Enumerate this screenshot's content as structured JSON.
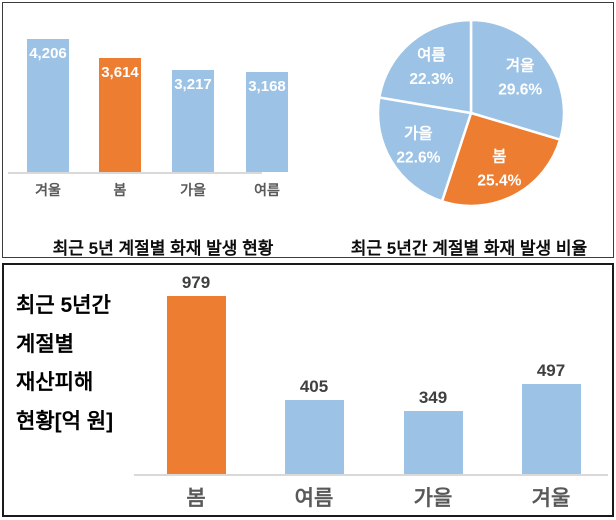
{
  "colors": {
    "blue": "#9CC3E6",
    "orange": "#ED7D31",
    "axis_line": "#D9D9D9",
    "x_label_gray": "#595959",
    "value_label_gray": "#404040",
    "title_black": "#000000",
    "bar_value_white": "#FFFFFF",
    "top_panel_border": "#3C3C3C",
    "bottom_panel_border": "#1A1A1A"
  },
  "chart_data": [
    {
      "id": "seasonal-fire-count",
      "type": "bar",
      "title": "최근 5년 계절별 화재 발생 현황",
      "categories": [
        "겨울",
        "봄",
        "가을",
        "여름"
      ],
      "category_keys": [
        "winter",
        "spring",
        "autumn",
        "summer"
      ],
      "values": [
        4206,
        3614,
        3217,
        3168
      ],
      "value_labels": [
        "4,206",
        "3,614",
        "3,217",
        "3,168"
      ],
      "bar_colors": [
        "blue",
        "orange",
        "blue",
        "blue"
      ],
      "highlight_category": "봄",
      "value_label_position": "inside-top",
      "ylim": [
        0,
        4206
      ],
      "gridlines": false
    },
    {
      "id": "seasonal-fire-ratio",
      "type": "pie",
      "title": "최근 5년간 계절별 화재 발생 비율",
      "labels": [
        "겨울",
        "봄",
        "가을",
        "여름"
      ],
      "label_keys": [
        "winter",
        "spring",
        "autumn",
        "summer"
      ],
      "values": [
        29.6,
        25.4,
        22.6,
        22.3
      ],
      "value_labels": [
        "29.6%",
        "25.4%",
        "22.6%",
        "22.3%"
      ],
      "slice_colors": [
        "blue",
        "orange",
        "blue",
        "blue"
      ],
      "start_angle_deg": 0,
      "direction": "clockwise",
      "legend": "none"
    },
    {
      "id": "seasonal-property-damage",
      "type": "bar",
      "title": "최근 5년간 계절별 재산피해 현황[억 원]",
      "title_lines": [
        "최근 5년간",
        "계절별",
        "재산피해",
        "현황[억 원]"
      ],
      "categories": [
        "봄",
        "여름",
        "가을",
        "겨울"
      ],
      "category_keys": [
        "spring",
        "summer",
        "autumn",
        "winter"
      ],
      "values": [
        979,
        405,
        349,
        497
      ],
      "value_labels": [
        "979",
        "405",
        "349",
        "497"
      ],
      "bar_colors": [
        "orange",
        "blue",
        "blue",
        "blue"
      ],
      "highlight_category": "봄",
      "value_label_position": "above",
      "ylim": [
        0,
        1050
      ],
      "gridlines": false
    }
  ]
}
